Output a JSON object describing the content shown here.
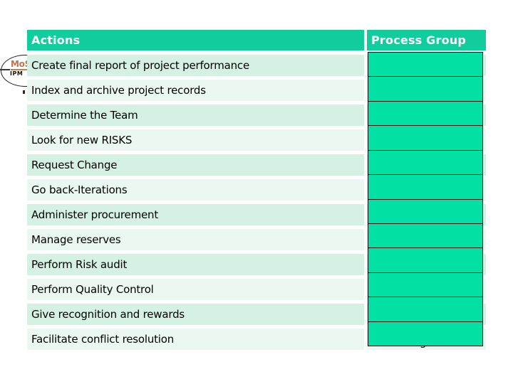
{
  "slide": {
    "table": {
      "columns": [
        "Actions",
        "Process Group"
      ],
      "rows": [
        "Create final report of project performance",
        "Index and archive project records",
        "Determine the Team",
        "Look for new RISKS",
        "Request Change",
        "Go back-Iterations",
        "Administer procurement",
        "Manage reserves",
        "Perform Risk audit",
        "Perform Quality Control",
        "Give recognition and rewards",
        "Facilitate conflict resolution"
      ],
      "cover_count": 12
    },
    "logo": {
      "top_text": "MoS",
      "bottom_text": "IPM"
    },
    "fragments": {
      "below_last_cover": "g"
    },
    "colors": {
      "header_green": "#11CD9D",
      "cover_green": "#03E0A3",
      "row_tint_dark": "#D5F1E3",
      "row_tint_light": "#EAF8F1"
    }
  }
}
